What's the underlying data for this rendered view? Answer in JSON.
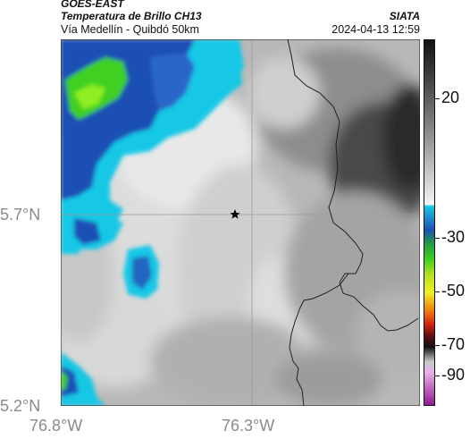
{
  "header": {
    "title1": "GOES-EAST",
    "title2": "Temperatura de Brillo CH13",
    "subtitle": "Vía Medellín - Quibdó 50km",
    "agency": "SIATA",
    "datetime": "2024-04-13 12:59"
  },
  "axes": {
    "y_ticks": [
      "5.7°N",
      "5.2°N"
    ],
    "x_ticks": [
      "76.8°W",
      "76.3°W"
    ]
  },
  "colorbar": {
    "ticks": [
      "20",
      "-30",
      "-50",
      "-70",
      "-90"
    ]
  },
  "marker": {
    "name": "star-marker"
  },
  "colors": {
    "cold_cloud_cyan": "#19c8e6",
    "cold_cloud_blue": "#1e50b4",
    "cold_cloud_green": "#40d020",
    "border_line": "#222222",
    "grid_line": "#9a9a9a"
  }
}
